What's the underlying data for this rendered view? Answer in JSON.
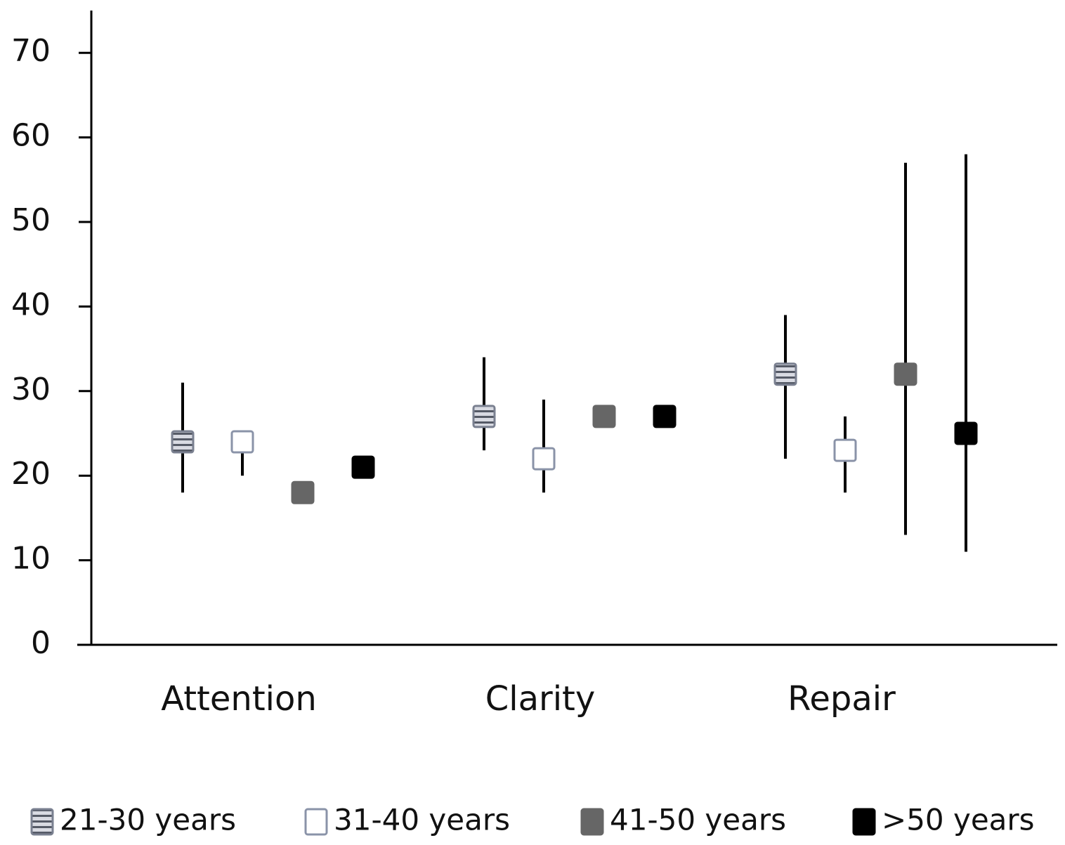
{
  "chart_data": {
    "type": "errorbar",
    "categories": [
      "Attention",
      "Clarity",
      "Repair"
    ],
    "series": [
      {
        "name": "21-30 years",
        "color": "#b8bcc8",
        "values": [
          24,
          27,
          32
        ],
        "low": [
          18,
          23,
          22
        ],
        "high": [
          31,
          34,
          39
        ]
      },
      {
        "name": "31-40 years",
        "color": "#ffffff",
        "values": [
          24,
          22,
          23
        ],
        "low": [
          20,
          18,
          18
        ],
        "high": [
          25,
          29,
          27
        ]
      },
      {
        "name": "41-50 years",
        "color": "#666666",
        "values": [
          18,
          27,
          32
        ],
        "low": [
          null,
          null,
          13
        ],
        "high": [
          null,
          null,
          57
        ]
      },
      {
        "name": ">50 years",
        "color": "#000000",
        "values": [
          21,
          27,
          25
        ],
        "low": [
          null,
          null,
          11
        ],
        "high": [
          null,
          null,
          58
        ]
      }
    ],
    "ylim": [
      0,
      75
    ],
    "yticks": [
      0,
      10,
      20,
      30,
      40,
      50,
      60,
      70
    ],
    "grid": false,
    "legend": "bottom"
  }
}
